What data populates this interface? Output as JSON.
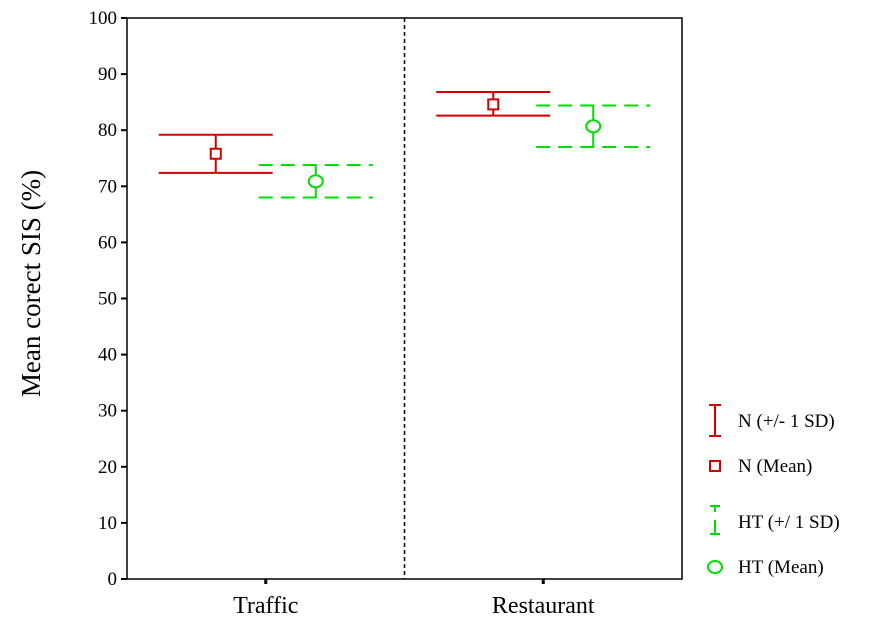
{
  "chart_data": {
    "type": "error-bar",
    "ylabel": "Mean corect SIS (%)",
    "xlabel": "",
    "ylim": [
      0,
      100
    ],
    "yticks": [
      0,
      10,
      20,
      30,
      40,
      50,
      60,
      70,
      80,
      90,
      100
    ],
    "categories": [
      "Traffic",
      "Restaurant"
    ],
    "series": [
      {
        "name": "N",
        "color": "#d40000",
        "line_style": "solid",
        "marker": "square",
        "mean": [
          75.8,
          84.6
        ],
        "sd_upper": [
          79.2,
          86.8
        ],
        "sd_lower": [
          72.4,
          82.6
        ]
      },
      {
        "name": "HT",
        "color": "#00dd00",
        "line_style": "dashed",
        "marker": "circle",
        "mean": [
          70.9,
          80.7
        ],
        "sd_upper": [
          73.8,
          84.4
        ],
        "sd_lower": [
          68.0,
          77.0
        ]
      }
    ],
    "category_separator": "dashed",
    "legend_position": "right",
    "grid": false
  },
  "legend": {
    "items": [
      {
        "label": "N (+/- 1 SD)",
        "kind": "errorbar",
        "series": 0
      },
      {
        "label": "N (Mean)",
        "kind": "mean",
        "series": 0
      },
      {
        "label": "HT (+/ 1 SD)",
        "kind": "errorbar",
        "series": 1
      },
      {
        "label": "HT (Mean)",
        "kind": "mean",
        "series": 1
      }
    ]
  }
}
